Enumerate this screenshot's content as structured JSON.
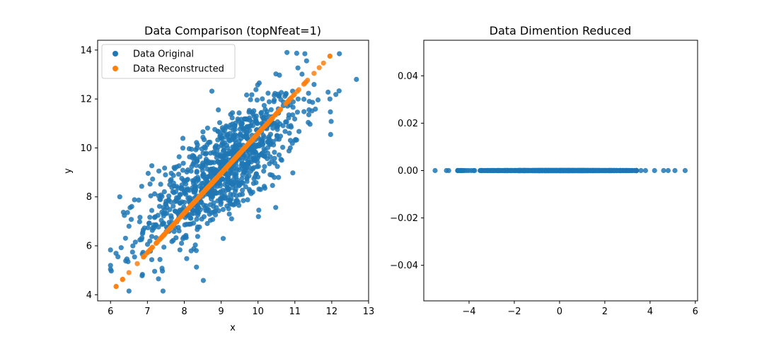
{
  "figure": {
    "background": "#ffffff",
    "colors": {
      "original": "#1f77b4",
      "reconstructed": "#ff7f0e"
    }
  },
  "chart_data": [
    {
      "type": "scatter",
      "title": "Data Comparison (topNfeat=1)",
      "xlabel": "x",
      "ylabel": "y",
      "xlim": [
        5.65,
        13.0
      ],
      "ylim": [
        3.75,
        14.4
      ],
      "xticks": [
        6,
        7,
        8,
        9,
        10,
        11,
        12,
        13
      ],
      "yticks": [
        4,
        6,
        8,
        10,
        12,
        14
      ],
      "grid": false,
      "legend": {
        "placement": "top-left",
        "entries": [
          "Data Original",
          "Data Reconstructed"
        ]
      },
      "series": [
        {
          "name": "Data Original",
          "color": "#1f77b4",
          "distribution": {
            "n": 1000,
            "mean": [
              9.05,
              9.1
            ],
            "std": [
              1.05,
              1.52
            ],
            "corr": 0.74
          },
          "points": [
            [
              6.0,
              5.2
            ],
            [
              6.02,
              4.97
            ],
            [
              6.2,
              5.55
            ],
            [
              6.25,
              8.0
            ],
            [
              6.5,
              4.15
            ],
            [
              7.3,
              4.65
            ],
            [
              8.33,
              5.13
            ],
            [
              7.12,
              9.27
            ],
            [
              12.67,
              12.8
            ],
            [
              11.95,
              12.0
            ],
            [
              11.97,
              10.55
            ],
            [
              11.9,
              12.28
            ],
            [
              11.27,
              13.85
            ],
            [
              11.05,
              13.87
            ],
            [
              8.75,
              12.32
            ],
            [
              7.02,
              8.96
            ],
            [
              6.5,
              6.8
            ]
          ]
        },
        {
          "name": "Data Reconstructed",
          "color": "#ff7f0e",
          "line": {
            "x_range": [
              6.15,
              11.95
            ],
            "y_range": [
              4.34,
              13.75
            ],
            "n": 420
          }
        }
      ]
    },
    {
      "type": "scatter",
      "title": "Data Dimention Reduced",
      "xlabel": "",
      "ylabel": "",
      "xlim": [
        -6.0,
        6.1
      ],
      "ylim": [
        -0.055,
        0.055
      ],
      "xticks": [
        -4,
        -2,
        0,
        2,
        4,
        6
      ],
      "xtick_labels": [
        "−4",
        "−2",
        "0",
        "2",
        "4",
        "6"
      ],
      "yticks": [
        -0.04,
        -0.02,
        0.0,
        0.02,
        0.04
      ],
      "ytick_labels": [
        "−0.04",
        "−0.02",
        "0.00",
        "0.02",
        "0.04"
      ],
      "grid": false,
      "series": [
        {
          "color": "#1f77b4",
          "y_value": 0.0,
          "x_distribution": {
            "n": 1000,
            "mean": 0.0,
            "std": 1.75,
            "range": [
              -5.5,
              5.55
            ]
          }
        }
      ]
    }
  ]
}
